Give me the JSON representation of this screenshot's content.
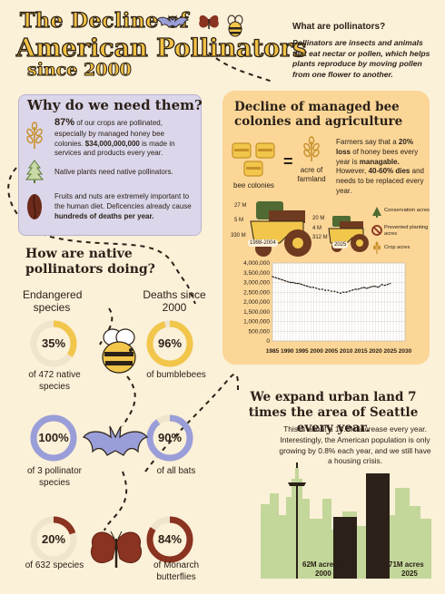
{
  "header": {
    "line1": "The Decline of",
    "line2": "American Pollinators",
    "line3": "since 2000"
  },
  "pollinators": {
    "title": "What are pollinators?",
    "text": "Pollinators are insects and animals that eat nectar or pollen, which helps plants reproduce by moving pollen from one flower to another."
  },
  "why": {
    "title": "Why do we need them?",
    "item1": {
      "bold": "87%",
      "text": " of our crops are pollinated, especially by managed honey bee colonies. ",
      "bold2": "$34,000,000,000",
      "text2": " is made in services and products every year."
    },
    "item2": "Native plants need native pollinators.",
    "item3": {
      "text": "Fruits and nuts are extremely important to the human diet. Deficencies already cause ",
      "bold": "hundreds of deaths per year."
    }
  },
  "decline": {
    "title": "Decline of managed bee colonies and agriculture",
    "eq_left": "bee colonies",
    "eq_sign": "=",
    "eq_right": "acre of farmland",
    "farmers": {
      "t1": "Farmers say that a ",
      "b1": "20% loss",
      "t2": " of honey bees every year is ",
      "b2": "managable.",
      "t3": " However, ",
      "b3": "40-60% dies",
      "t4": " and needs to be replaced every year."
    },
    "tractor1": {
      "top": "27 M",
      "mid": "5 M",
      "bottom": "330 M",
      "label": "1998-2004"
    },
    "tractor2": {
      "top": "20 M",
      "mid": "4 M",
      "bottom": "312 M",
      "label": "2025"
    },
    "legend": [
      "Conservation acres",
      "Prevented planting acres",
      "Crop acres"
    ]
  },
  "chart_data": {
    "type": "line",
    "x": [
      1985,
      1986,
      1987,
      1988,
      1989,
      1990,
      1991,
      1992,
      1993,
      1994,
      1995,
      1996,
      1997,
      1998,
      1999,
      2000,
      2001,
      2002,
      2003,
      2004,
      2005,
      2006,
      2007,
      2008,
      2009,
      2010,
      2011,
      2012,
      2013,
      2014,
      2015,
      2016,
      2017,
      2018,
      2019,
      2020,
      2021,
      2022,
      2023,
      2024,
      2025
    ],
    "series": [
      {
        "values": [
          3300000,
          3250000,
          3200000,
          3150000,
          3100000,
          3050000,
          3000000,
          3000000,
          2950000,
          2950000,
          2900000,
          2850000,
          2800000,
          2750000,
          2750000,
          2700000,
          2650000,
          2650000,
          2600000,
          2600000,
          2550000,
          2550000,
          2500000,
          2450000,
          2500000,
          2500000,
          2550000,
          2600000,
          2650000,
          2650000,
          2700000,
          2750000,
          2700000,
          2750000,
          2800000,
          2800000,
          2750000,
          2900000,
          2850000,
          2900000,
          2950000
        ]
      }
    ],
    "xticks": [
      "1985",
      "1990",
      "1995",
      "2000",
      "2005",
      "2010",
      "2015",
      "2020",
      "2025",
      "2030"
    ],
    "yticks": [
      "4,000,000",
      "3,500,000",
      "3,000,000",
      "2,500,000",
      "2,000,000",
      "1,500,000",
      "1,000,000",
      "500,000",
      "0"
    ],
    "ylim": [
      0,
      4000000
    ],
    "xlim": [
      1985,
      2030
    ],
    "grid": true
  },
  "native": {
    "title": "How are native pollinators doing?",
    "endangered_h": "Endangered species",
    "deaths_h": "Deaths since 2000",
    "stats": [
      {
        "pct": "35%",
        "value": 35,
        "desc": "of 472 native species",
        "color": "#f1c64a"
      },
      {
        "pct": "96%",
        "value": 96,
        "desc": "of bumblebees",
        "color": "#f1c64a"
      },
      {
        "pct": "100%",
        "value": 100,
        "desc": "of 3 pollinator species",
        "color": "#9a9ed8"
      },
      {
        "pct": "90%",
        "value": 90,
        "desc": "of all bats",
        "color": "#9a9ed8"
      },
      {
        "pct": "20%",
        "value": 20,
        "desc": "of 632 species",
        "color": "#8a3320"
      },
      {
        "pct": "84%",
        "value": 84,
        "desc": "of Monarch butterflies",
        "color": "#8a3320"
      }
    ]
  },
  "urban": {
    "title": "We expand urban land 7 times the area of Seattle every year.",
    "text": "This is about a 14.3% increase every year. Interestingly, the American population is only growing by 0.8% each year, and we still have a housing crisis.",
    "label2000_a": "62M acres",
    "label2000_b": "2000",
    "label2025_a": "71M acres",
    "label2025_b": "2025"
  }
}
